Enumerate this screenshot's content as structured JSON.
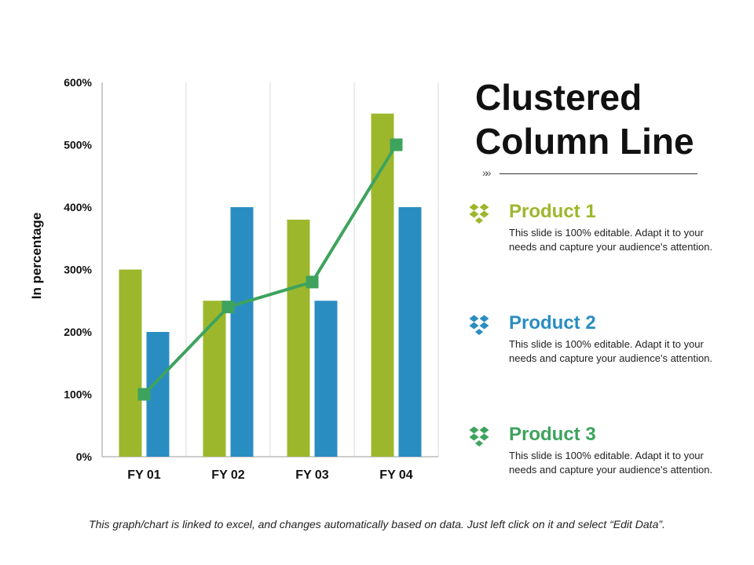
{
  "title": "Clustered Column Line",
  "chart_data": {
    "type": "bar+line",
    "categories": [
      "FY 01",
      "FY 02",
      "FY 03",
      "FY 04"
    ],
    "series": [
      {
        "name": "Product 1",
        "kind": "bar",
        "color": "#9DB72D",
        "values": [
          300,
          250,
          380,
          550
        ]
      },
      {
        "name": "Product 2",
        "kind": "bar",
        "color": "#2A8DC2",
        "values": [
          200,
          400,
          250,
          400
        ]
      },
      {
        "name": "Product 3",
        "kind": "line",
        "color": "#3DA35D",
        "values": [
          100,
          240,
          280,
          500
        ]
      }
    ],
    "ylabel": "In percentage",
    "ylim": [
      0,
      600
    ],
    "yticks": [
      "0%",
      "100%",
      "200%",
      "300%",
      "400%",
      "500%",
      "600%"
    ],
    "grid": "vertical"
  },
  "products": [
    {
      "name": "Product 1",
      "color": "#9DB72D",
      "icon": "dropbox-icon",
      "desc": "This slide is 100% editable. Adapt it to your needs and capture your audience's attention."
    },
    {
      "name": "Product 2",
      "color": "#2A8DC2",
      "icon": "dropbox-icon",
      "desc": "This slide is 100% editable. Adapt it to your needs and capture your audience's attention."
    },
    {
      "name": "Product 3",
      "color": "#3DA35D",
      "icon": "dropbox-icon",
      "desc": "This slide is 100% editable. Adapt it to your needs and capture your audience's attention."
    }
  ],
  "divider_glyph": "»»",
  "footnote": "This graph/chart is linked to excel, and changes automatically based on data. Just left click on it and select “Edit Data”."
}
